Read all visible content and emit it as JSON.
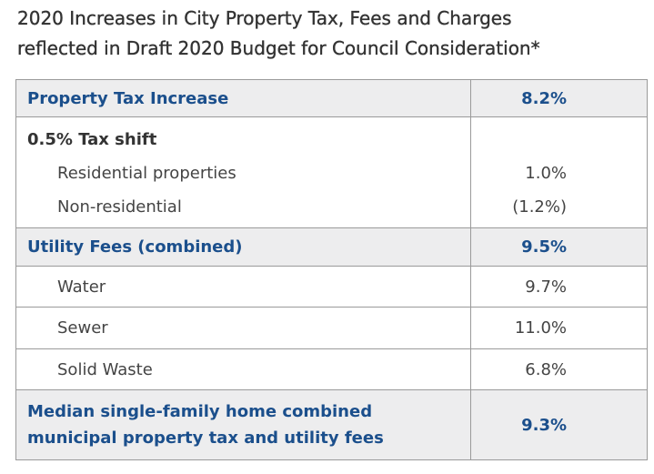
{
  "header": {
    "title_lines": [
      "2020 Increases in City Property Tax, Fees and Charges",
      "reflected in Draft 2020 Budget for Council Consideration*"
    ]
  },
  "table": {
    "rows": [
      {
        "label": "Property Tax Increase",
        "value": "8.2%"
      },
      {
        "label": "0.5% Tax shift",
        "items": [
          {
            "label": "Residential properties",
            "value": "1.0%"
          },
          {
            "label": "Non-residential",
            "value": "(1.2%)"
          }
        ]
      },
      {
        "label": "Utility Fees (combined)",
        "value": "9.5%"
      },
      {
        "label": "Water",
        "value": "9.7%"
      },
      {
        "label": "Sewer",
        "value": "11.0%"
      },
      {
        "label": "Solid Waste",
        "value": "6.8%"
      },
      {
        "label_lines": [
          "Median single-family home combined",
          "municipal property tax and utility fees"
        ],
        "value": "9.3%"
      }
    ]
  }
}
